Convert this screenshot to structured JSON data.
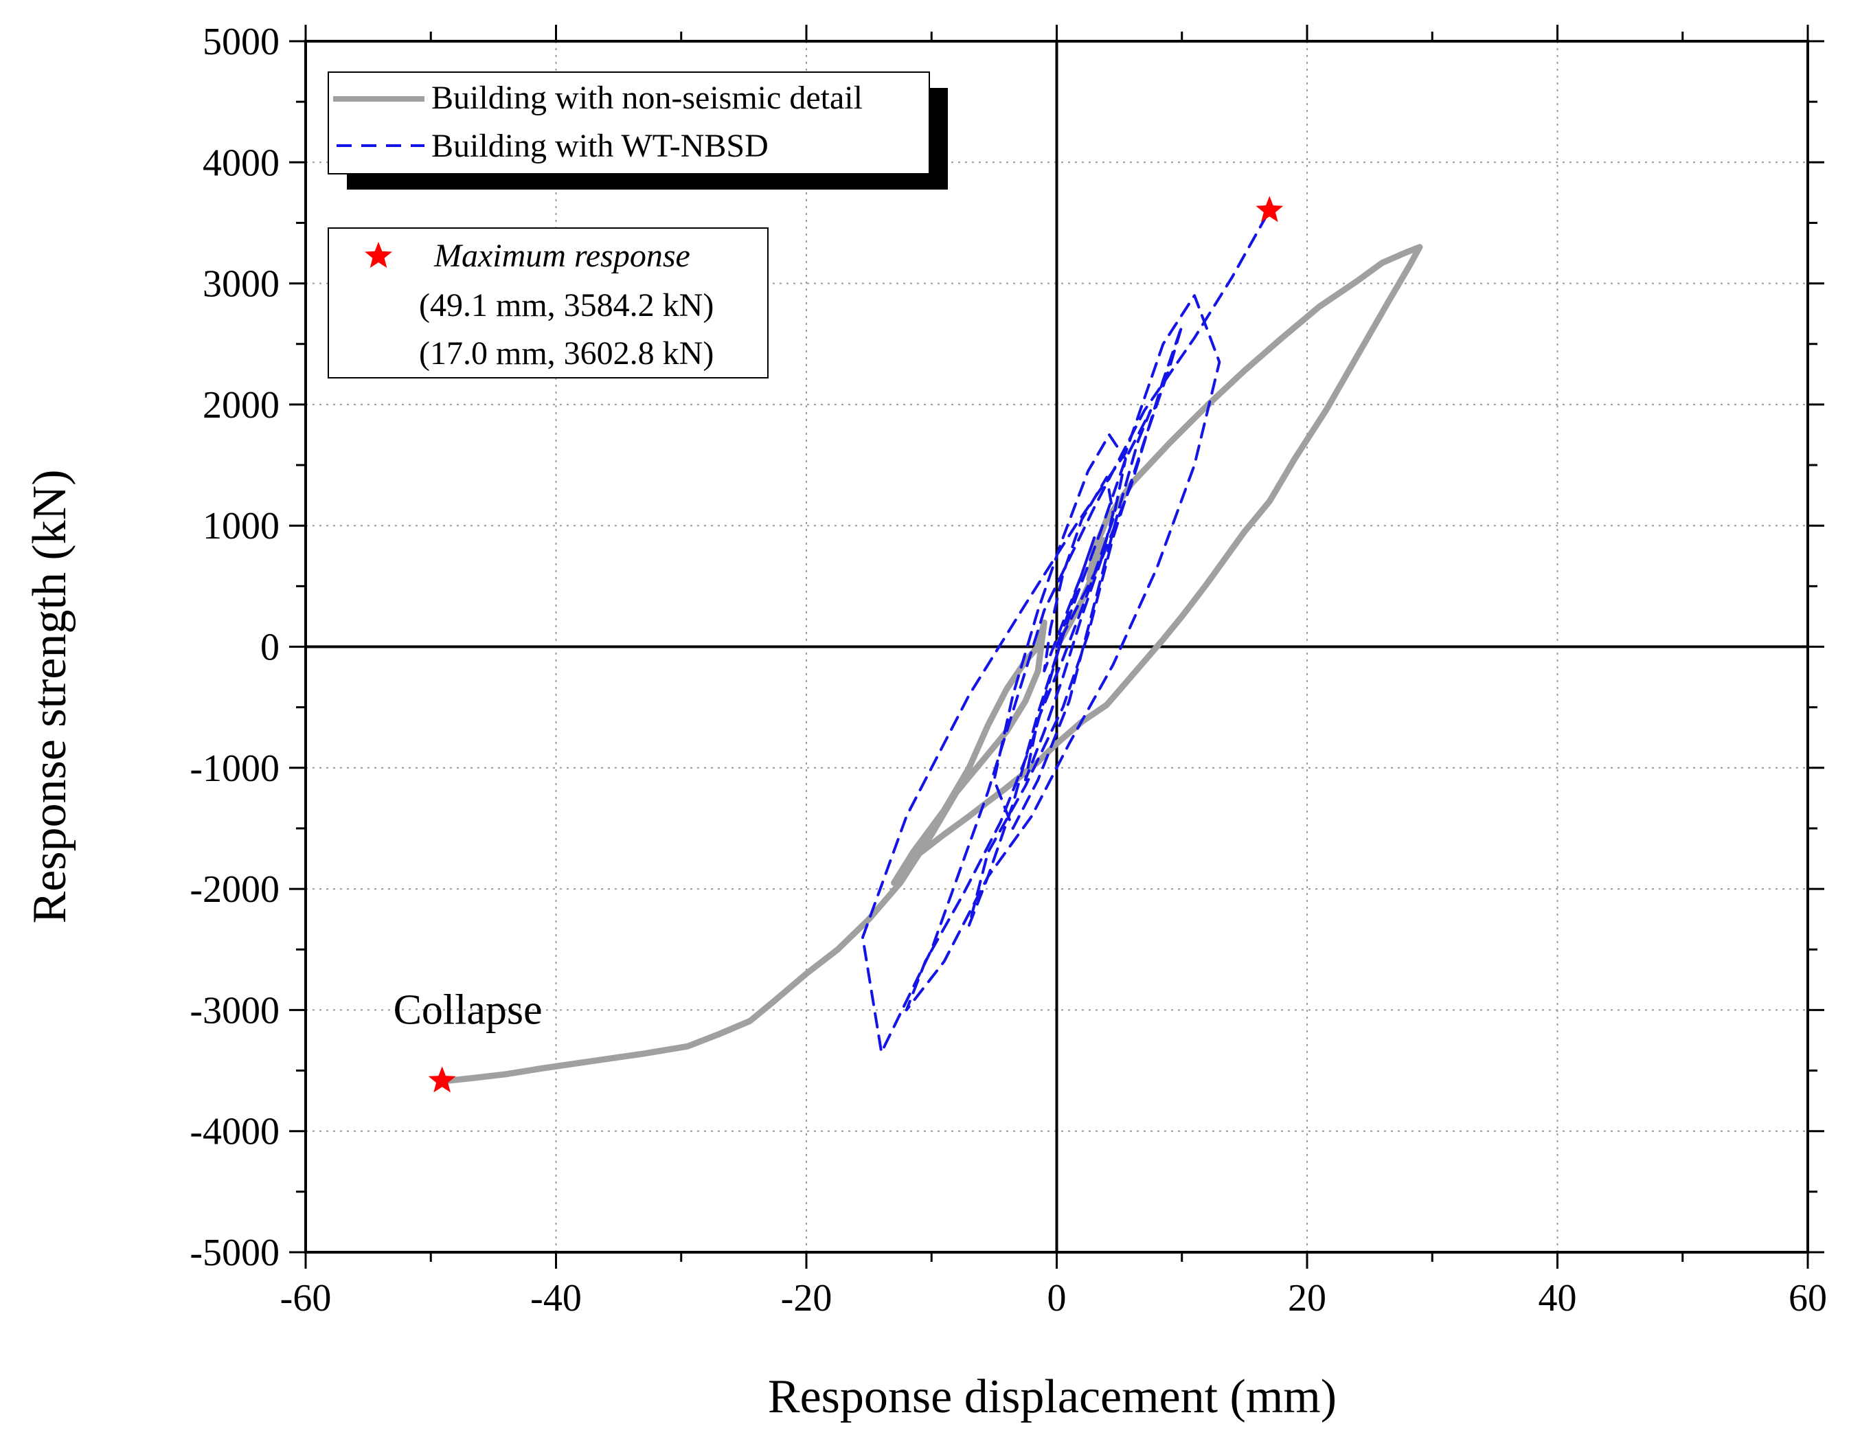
{
  "chart_data": {
    "type": "line",
    "title": "",
    "xlabel": "Response displacement (mm)",
    "ylabel": "Response strength (kN)",
    "xlim": [
      -60,
      60
    ],
    "ylim": [
      -5000,
      5000
    ],
    "xticks": [
      -60,
      -40,
      -20,
      0,
      20,
      40,
      60
    ],
    "yticks": [
      5000,
      4000,
      3000,
      2000,
      1000,
      0,
      -1000,
      -2000,
      -3000,
      -4000,
      -5000
    ],
    "grid": true,
    "legend": {
      "position": "top-left",
      "entries": [
        "Building with non-seismic detail",
        "Building with WT-NBSD"
      ]
    },
    "annotation_box": {
      "title": "Maximum response",
      "lines": [
        "(49.1 mm, 3584.2 kN)",
        "(17.0 mm, 3602.8 kN)"
      ]
    },
    "text_annotations": [
      {
        "text": "Collapse",
        "x": -53,
        "y": -3000
      }
    ],
    "markers": [
      {
        "name": "max-response-non-seismic",
        "x": -49.1,
        "y": -3584.2,
        "symbol": "star",
        "color": "#ff0000"
      },
      {
        "name": "max-response-wt-nbsd",
        "x": 17.0,
        "y": 3602.8,
        "symbol": "star",
        "color": "#ff0000"
      }
    ],
    "series": [
      {
        "name": "Building with non-seismic detail",
        "color": "#a0a0a0",
        "style": "solid",
        "x": [
          0,
          1,
          2,
          3,
          3.8,
          3.2,
          2.6,
          3,
          4,
          6,
          9,
          12,
          15,
          18,
          21,
          24,
          26,
          28,
          29,
          28.2,
          26.5,
          24,
          21.5,
          19,
          17,
          15,
          12,
          10,
          8.5,
          7,
          5.5,
          4,
          2,
          0,
          -1.5,
          -3,
          -4.2,
          -5.5,
          -7,
          -9,
          -11.5,
          -13,
          -11.5,
          -9,
          -7,
          -5.5,
          -4,
          -2.5,
          -1.5,
          -1,
          -1.5,
          -2.5,
          -4,
          -6,
          -8,
          -10,
          -12.5,
          -15,
          -17.5,
          -20,
          -22.5,
          -24.5,
          -27,
          -29.5,
          -33,
          -37,
          -41,
          -44,
          -46.5,
          -48.3,
          -49.1
        ],
        "y": [
          0,
          180,
          380,
          620,
          880,
          700,
          560,
          800,
          1050,
          1350,
          1680,
          1990,
          2280,
          2550,
          2810,
          3020,
          3170,
          3260,
          3300,
          3150,
          2850,
          2400,
          1950,
          1550,
          1200,
          950,
          520,
          250,
          60,
          -120,
          -300,
          -480,
          -620,
          -800,
          -950,
          -1080,
          -1180,
          -1280,
          -1400,
          -1550,
          -1750,
          -1950,
          -1700,
          -1350,
          -1000,
          -650,
          -350,
          -120,
          0,
          200,
          -200,
          -450,
          -700,
          -950,
          -1200,
          -1550,
          -1950,
          -2250,
          -2500,
          -2700,
          -2920,
          -3090,
          -3200,
          -3300,
          -3360,
          -3420,
          -3480,
          -3530,
          -3560,
          -3580,
          -3584.2
        ]
      },
      {
        "name": "Building with WT-NBSD",
        "color": "#1414e6",
        "style": "dashed",
        "x": [
          0,
          1,
          2,
          3,
          2,
          0.5,
          -1,
          -0.5,
          0.5,
          2,
          4,
          4.5,
          3.5,
          2,
          0.5,
          -1,
          -2.5,
          -1.5,
          0.5,
          2.5,
          4.5,
          5.5,
          4.2,
          2.5,
          0.5,
          -1.5,
          -3.5,
          -5,
          -3.5,
          -1.5,
          1,
          3,
          5,
          6.5,
          7.5,
          5.5,
          3.5,
          1,
          -1.5,
          -3.5,
          -5.5,
          -7,
          -5.5,
          -2.5,
          0.5,
          2.5,
          4.5,
          7,
          9,
          10,
          8.5,
          6,
          3.5,
          0.5,
          -2,
          -4.5,
          -7.5,
          -10.5,
          -12,
          -9,
          -5.5,
          -2,
          1,
          4.5,
          8,
          11,
          13,
          11,
          8.5,
          5.5,
          1.5,
          -2.5,
          -7,
          -12,
          -15.5,
          -14,
          -10,
          -5.5,
          -1,
          3,
          7,
          11,
          14,
          17
        ],
        "y": [
          0,
          300,
          600,
          900,
          600,
          200,
          -200,
          150,
          600,
          1050,
          1400,
          1100,
          700,
          250,
          -250,
          -700,
          -1100,
          -600,
          -100,
          450,
          1050,
          1550,
          1750,
          1450,
          900,
          300,
          -400,
          -1100,
          -1500,
          -1100,
          -450,
          350,
          1150,
          1700,
          1950,
          1550,
          950,
          250,
          -550,
          -1300,
          -1900,
          -2300,
          -1700,
          -1150,
          -500,
          100,
          900,
          1700,
          2300,
          2650,
          2200,
          1350,
          700,
          100,
          -800,
          -1450,
          -2050,
          -2600,
          -3000,
          -2600,
          -1900,
          -1400,
          -800,
          -150,
          650,
          1500,
          2350,
          2900,
          2500,
          1600,
          1000,
          350,
          -400,
          -1400,
          -2400,
          -3350,
          -2500,
          -1200,
          300,
          1150,
          1950,
          2550,
          3050,
          3602.8
        ]
      }
    ]
  }
}
